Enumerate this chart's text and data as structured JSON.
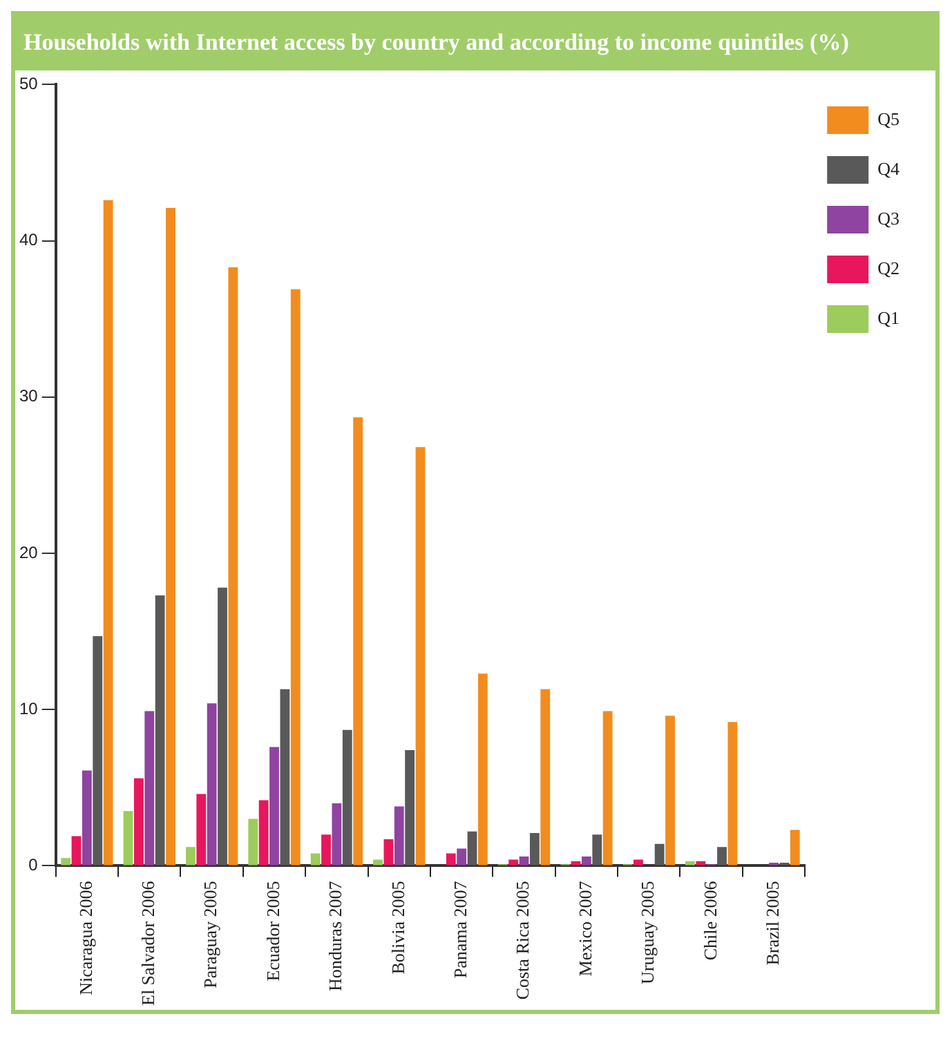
{
  "chart_data": {
    "type": "bar",
    "title": "Households with Internet access by country and according to income quintiles (%)",
    "categories": [
      "Nicaragua 2006",
      "El Salvador 2006",
      "Paraguay 2005",
      "Ecuador 2005",
      "Honduras 2007",
      "Bolivia 2005",
      "Panama 2007",
      "Costa Rica 2005",
      "Mexico 2007",
      "Uruguay 2005",
      "Chile 2006",
      "Brazil 2005"
    ],
    "series": [
      {
        "name": "Q1",
        "color": "#9ccc5c",
        "values": [
          0.5,
          3.5,
          1.2,
          3.0,
          0.8,
          0.4,
          0,
          0.1,
          0.1,
          0.1,
          0.3,
          0
        ]
      },
      {
        "name": "Q2",
        "color": "#e8175d",
        "values": [
          1.9,
          5.6,
          4.6,
          4.2,
          2.0,
          1.7,
          0.8,
          0.4,
          0.3,
          0.4,
          0.3,
          0
        ]
      },
      {
        "name": "Q3",
        "color": "#8e44a0",
        "values": [
          6.1,
          9.9,
          10.4,
          7.6,
          4.0,
          3.8,
          1.1,
          0.6,
          0.6,
          0,
          0.1,
          0.2
        ]
      },
      {
        "name": "Q4",
        "color": "#595959",
        "values": [
          14.7,
          17.3,
          17.8,
          11.3,
          8.7,
          7.4,
          2.2,
          2.1,
          2.0,
          1.4,
          1.2,
          0.2
        ]
      },
      {
        "name": "Q5",
        "color": "#f28c1e",
        "values": [
          42.6,
          42.1,
          38.3,
          36.9,
          28.7,
          26.8,
          12.3,
          11.3,
          9.9,
          9.6,
          9.2,
          2.3
        ]
      }
    ],
    "ylim": [
      0,
      50
    ],
    "yticks": [
      0,
      10,
      20,
      30,
      40,
      50
    ],
    "grid": false,
    "legend": "top right"
  }
}
